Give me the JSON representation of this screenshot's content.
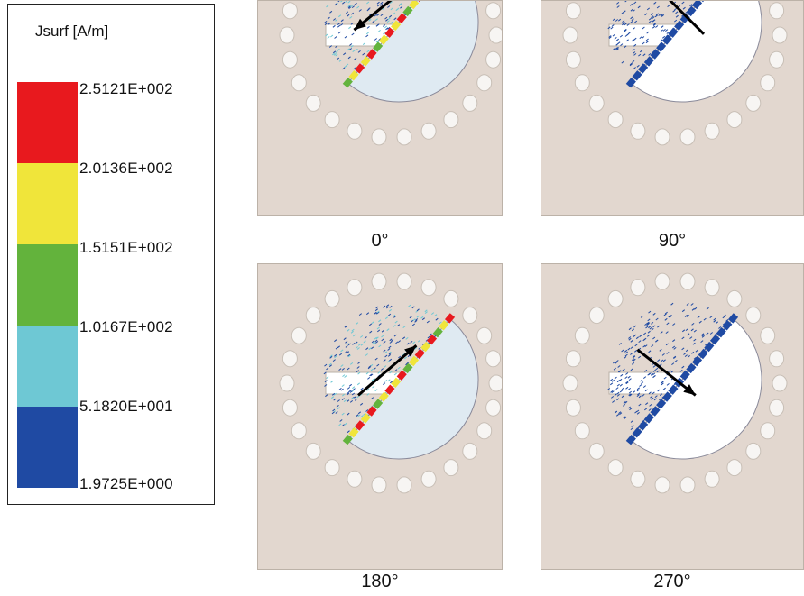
{
  "legend": {
    "title": "Jsurf [A/m]",
    "ticks": [
      "2.5121E+002",
      "2.0136E+002",
      "1.5151E+002",
      "1.0167E+002",
      "5.1820E+001",
      "1.9725E+000"
    ],
    "bands": [
      {
        "color": "#e8191e"
      },
      {
        "color": "#f0e53a"
      },
      {
        "color": "#63b33c"
      },
      {
        "color": "#6ec8d4"
      },
      {
        "color": "#1f4aa3"
      }
    ]
  },
  "panels": [
    {
      "label": "0°"
    },
    {
      "label": "90°"
    },
    {
      "label": "180°"
    },
    {
      "label": "270°"
    }
  ]
}
